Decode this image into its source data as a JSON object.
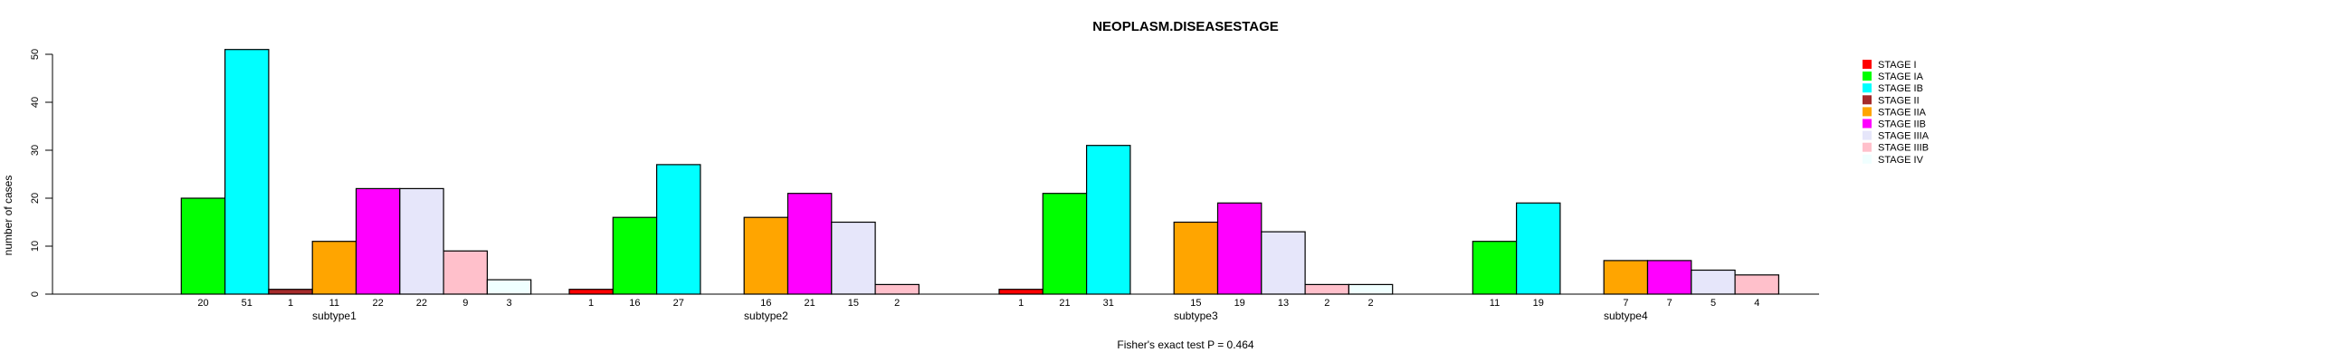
{
  "chart_data": {
    "type": "bar",
    "title": "NEOPLASM.DISEASESTAGE",
    "ylabel": "number of cases",
    "xlabel": "",
    "footnote": "Fisher's exact test P = 0.464",
    "ylim": [
      0,
      50
    ],
    "yticks": [
      "0",
      "10",
      "20",
      "30",
      "40",
      "50"
    ],
    "categories": [
      "subtype1",
      "subtype2",
      "subtype3",
      "subtype4"
    ],
    "series": [
      {
        "name": "STAGE I",
        "color": "#ff0000",
        "values": [
          0,
          1,
          1,
          0
        ]
      },
      {
        "name": "STAGE IA",
        "color": "#00ff00",
        "values": [
          20,
          16,
          21,
          11
        ]
      },
      {
        "name": "STAGE IB",
        "color": "#00ffff",
        "values": [
          51,
          27,
          31,
          19
        ]
      },
      {
        "name": "STAGE II",
        "color": "#a52a2a",
        "values": [
          1,
          0,
          0,
          0
        ]
      },
      {
        "name": "STAGE IIA",
        "color": "#ffa500",
        "values": [
          11,
          16,
          15,
          7
        ]
      },
      {
        "name": "STAGE IIB",
        "color": "#ff00ff",
        "values": [
          22,
          21,
          19,
          7
        ]
      },
      {
        "name": "STAGE IIIA",
        "color": "#e6e6fa",
        "values": [
          22,
          15,
          13,
          5
        ]
      },
      {
        "name": "STAGE IIIB",
        "color": "#ffc0cb",
        "values": [
          9,
          2,
          2,
          4
        ]
      },
      {
        "name": "STAGE IV",
        "color": "#f0ffff",
        "values": [
          3,
          0,
          2,
          0
        ]
      }
    ]
  }
}
